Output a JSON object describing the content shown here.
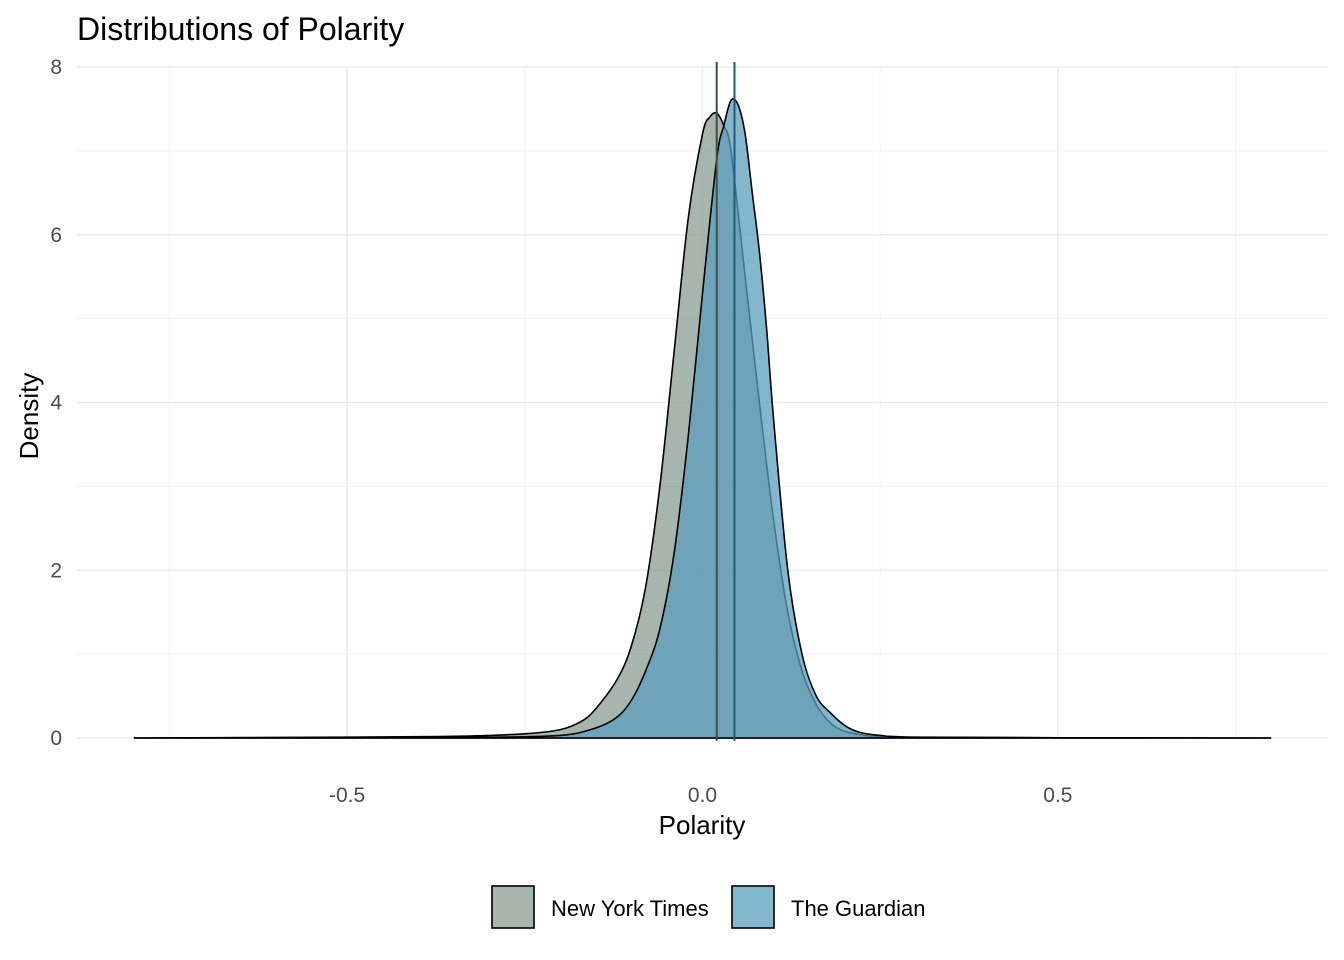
{
  "chart_data": {
    "type": "area",
    "title": "Distributions of Polarity",
    "xlabel": "Polarity",
    "ylabel": "Density",
    "xlim": [
      -0.88,
      0.88
    ],
    "ylim": [
      0,
      8
    ],
    "x_ticks": [
      -0.5,
      0.0,
      0.5
    ],
    "x_tick_labels": [
      "-0.5",
      "0.0",
      "0.5"
    ],
    "y_ticks": [
      0,
      2,
      4,
      6,
      8
    ],
    "y_tick_labels": [
      "0",
      "2",
      "4",
      "6",
      "8"
    ],
    "grid": true,
    "legend_position": "bottom",
    "series": [
      {
        "name": "New York Times",
        "fill": "#8a9c94",
        "line_color": "#3d4f47",
        "mean": 0.02,
        "x": [
          -0.8,
          -0.5,
          -0.35,
          -0.25,
          -0.2,
          -0.17,
          -0.15,
          -0.12,
          -0.1,
          -0.08,
          -0.06,
          -0.04,
          -0.02,
          0.0,
          0.01,
          0.02,
          0.03,
          0.04,
          0.06,
          0.08,
          0.1,
          0.12,
          0.14,
          0.16,
          0.18,
          0.2,
          0.23,
          0.26,
          0.35,
          0.5,
          0.8
        ],
        "values": [
          0.0,
          0.01,
          0.02,
          0.05,
          0.1,
          0.2,
          0.35,
          0.7,
          1.1,
          1.8,
          3.0,
          4.6,
          6.2,
          7.2,
          7.4,
          7.45,
          7.3,
          7.0,
          5.5,
          4.0,
          2.6,
          1.5,
          0.8,
          0.4,
          0.18,
          0.08,
          0.03,
          0.01,
          0.005,
          0.003,
          0.0
        ]
      },
      {
        "name": "The Guardian",
        "fill": "#5b9ebd",
        "line_color": "#1a5e7e",
        "mean": 0.045,
        "x": [
          -0.8,
          -0.5,
          -0.3,
          -0.2,
          -0.15,
          -0.12,
          -0.1,
          -0.08,
          -0.06,
          -0.04,
          -0.02,
          0.0,
          0.02,
          0.03,
          0.04,
          0.05,
          0.06,
          0.07,
          0.08,
          0.09,
          0.1,
          0.12,
          0.14,
          0.16,
          0.18,
          0.2,
          0.22,
          0.25,
          0.3,
          0.5,
          0.8
        ],
        "values": [
          0.0,
          0.005,
          0.01,
          0.03,
          0.12,
          0.25,
          0.45,
          0.8,
          1.3,
          2.2,
          3.6,
          5.3,
          6.9,
          7.3,
          7.6,
          7.55,
          7.2,
          6.5,
          5.8,
          4.9,
          3.8,
          2.0,
          1.0,
          0.5,
          0.3,
          0.15,
          0.07,
          0.03,
          0.01,
          0.003,
          0.0
        ]
      }
    ]
  }
}
